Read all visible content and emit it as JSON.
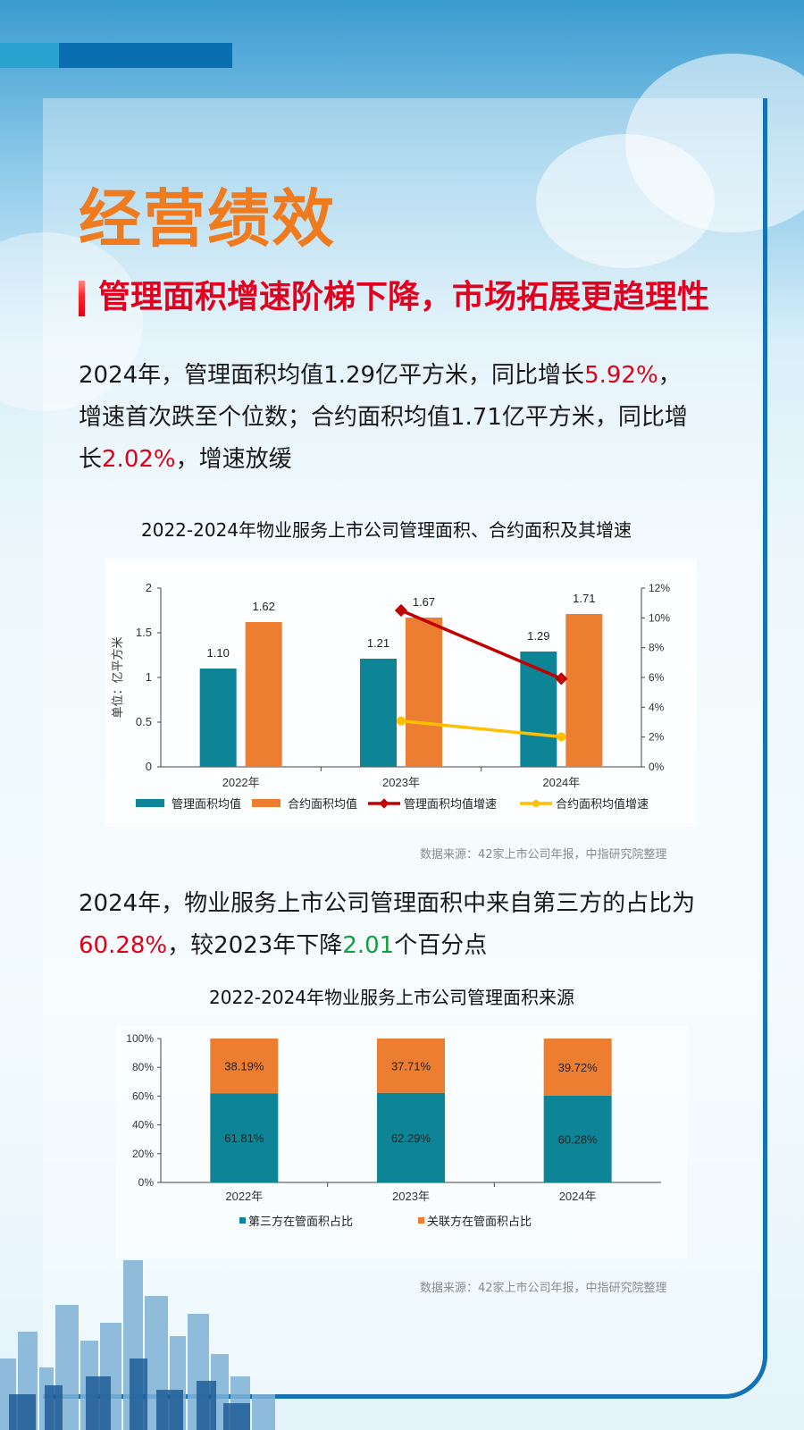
{
  "header": {
    "title": "经营绩效",
    "subtitle": "管理面积增速阶梯下降，市场拓展更趋理性"
  },
  "paragraph1": {
    "p1": "2024年，管理面积均值1.29亿平方米，同比增长",
    "h1": "5.92%",
    "p2": "，增速首次跌至个位数；合约面积均值1.71亿平方米，同比增长",
    "h2": "2.02%",
    "p3": "，增速放缓"
  },
  "paragraph2": {
    "p1": "2024年，物业服务上市公司管理面积中来自第三方的占比为",
    "h1": "60.28%",
    "p2": "，较2023年下降",
    "h2": "2.01",
    "p3": "个百分点"
  },
  "colors": {
    "teal": "#0e8596",
    "orange": "#ed7d31",
    "darkred": "#c00000",
    "yellow": "#ffc000"
  },
  "chart_data": [
    {
      "type": "bar",
      "title": "2022-2024年物业服务上市公司管理面积、合约面积及其增速",
      "categories": [
        "2022年",
        "2023年",
        "2024年"
      ],
      "ylabel": "单位：亿平方米",
      "ylim": [
        0,
        2
      ],
      "yticks": [
        "0",
        "0.5",
        "1",
        "1.5",
        "2"
      ],
      "y2lim": [
        0,
        12
      ],
      "y2ticks": [
        "0%",
        "2%",
        "4%",
        "6%",
        "8%",
        "10%",
        "12%"
      ],
      "series": [
        {
          "name": "管理面积均值",
          "kind": "bar",
          "values": [
            1.1,
            1.21,
            1.29
          ],
          "labels": [
            "1.10",
            "1.21",
            "1.29"
          ]
        },
        {
          "name": "合约面积均值",
          "kind": "bar",
          "values": [
            1.62,
            1.67,
            1.71
          ],
          "labels": [
            "1.62",
            "1.67",
            "1.71"
          ]
        },
        {
          "name": "管理面积均值增速",
          "kind": "line",
          "axis": "right",
          "x": [
            "2023年",
            "2024年"
          ],
          "values": [
            10.5,
            5.92
          ]
        },
        {
          "name": "合约面积均值增速",
          "kind": "line",
          "axis": "right",
          "x": [
            "2023年",
            "2024年"
          ],
          "values": [
            3.08,
            2.02
          ]
        }
      ],
      "source": "数据来源：42家上市公司年报，中指研究院整理"
    },
    {
      "type": "bar",
      "stacked": true,
      "title": "2022-2024年物业服务上市公司管理面积来源",
      "categories": [
        "2022年",
        "2023年",
        "2024年"
      ],
      "ylim": [
        0,
        100
      ],
      "yticks": [
        "0%",
        "20%",
        "40%",
        "60%",
        "80%",
        "100%"
      ],
      "series": [
        {
          "name": "第三方在管面积占比",
          "values": [
            61.81,
            62.29,
            60.28
          ],
          "labels": [
            "61.81%",
            "62.29%",
            "60.28%"
          ]
        },
        {
          "name": "关联方在管面积占比",
          "values": [
            38.19,
            37.71,
            39.72
          ],
          "labels": [
            "38.19%",
            "37.71%",
            "39.72%"
          ]
        }
      ],
      "source": "数据来源：42家上市公司年报，中指研究院整理"
    }
  ]
}
